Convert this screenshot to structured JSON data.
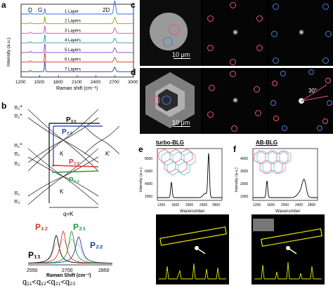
{
  "panels": {
    "a": {
      "label": "a",
      "peak_labels": [
        "D",
        "G",
        "2D"
      ],
      "ylabel": "Intensity (a.u.)",
      "xlabel": "Raman shift (cm⁻¹)",
      "xticks": [
        "1200",
        "1500",
        "1800",
        "2100",
        "2400",
        "2700",
        "3000"
      ]
    },
    "b": {
      "label": "b",
      "diagram1": {
        "p11": "P₁₁",
        "p22": "P₂₂",
        "pi2star": "π₂*",
        "pi1star": "π₁*",
        "pi1": "π₁",
        "pi2": "π₂",
        "K": "K",
        "Kprime": "K'"
      },
      "diagram2": {
        "p12": "P₁₂",
        "p21": "P₂₁",
        "pi1star": "π₁*",
        "pi2star": "π₂*",
        "pi1": "π₁",
        "pi2": "π₂",
        "K": "K",
        "qK": "q=K"
      },
      "spectrum": {
        "p12": "P₁₂",
        "p21": "P₂₁",
        "p11": "P₁₁",
        "p22": "P₂₂",
        "xlabel": "Raman Shift (cm⁻¹)",
        "xticks": [
          "2550",
          "2700",
          "2850"
        ]
      },
      "relation": "q₁₁<q₁₂<q₂₁<q₂₂"
    },
    "c": {
      "label": "c",
      "scalebar": "10 μm"
    },
    "d": {
      "label": "d",
      "scalebar": "10 μm",
      "angle": "30°"
    },
    "e": {
      "label": "e",
      "title": "turbo-BLG",
      "ylabel": "Intensity (a.u.)",
      "xlabel": "Wavenumber",
      "yticks": [
        "2000",
        "4000",
        "6000",
        "8000"
      ],
      "xticks": [
        "1200",
        "1600",
        "2000",
        "2400",
        "2800"
      ]
    },
    "f": {
      "label": "f",
      "title": "AB-BLG",
      "ylabel": "Intensity (a.u.)",
      "xlabel": "Wavenumber",
      "yticks": [
        "1000",
        "2000",
        "3000",
        "4000"
      ],
      "xticks": [
        "1200",
        "1600",
        "2000",
        "2400",
        "2800"
      ]
    }
  },
  "chart_data": {
    "type": "line",
    "xlabel": "Raman shift (cm⁻¹)",
    "ylabel": "Intensity (a.u.)",
    "xlim": [
      1200,
      3000
    ],
    "peak_positions": {
      "D": 1350,
      "G": 1580,
      "2D": 2700
    },
    "series": [
      {
        "name": "1 Layer",
        "color": "#2b6fd6",
        "g_height": 0.35,
        "twod_height": 0.85
      },
      {
        "name": "2 Layers",
        "color": "#8aa000",
        "g_height": 0.45,
        "twod_height": 0.4
      },
      {
        "name": "3 Layers",
        "color": "#e64aa0",
        "g_height": 0.5,
        "twod_height": 0.35
      },
      {
        "name": "4 Layers",
        "color": "#2a9b8b",
        "g_height": 0.55,
        "twod_height": 0.3
      },
      {
        "name": "5 Layers",
        "color": "#8b3fc0",
        "g_height": 0.6,
        "twod_height": 0.3
      },
      {
        "name": "6 Layers",
        "color": "#d9342b",
        "g_height": 0.65,
        "twod_height": 0.3
      },
      {
        "name": "7 Layers",
        "color": "#1f3f8f",
        "g_height": 0.7,
        "twod_height": 0.3
      }
    ]
  }
}
